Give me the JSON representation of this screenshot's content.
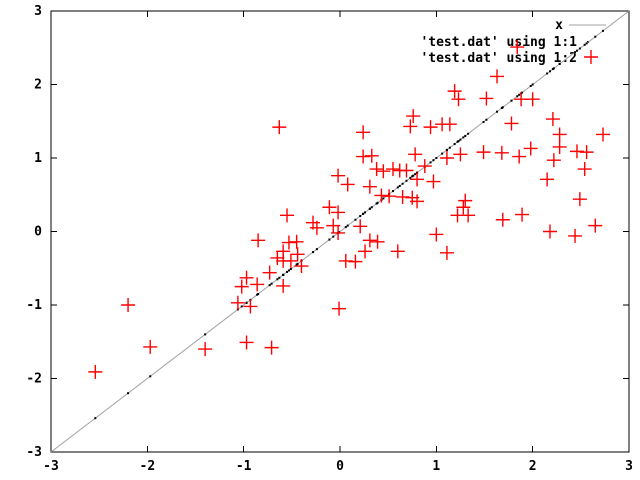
{
  "window": {
    "background": "#ffffff"
  },
  "chart_data": {
    "type": "scatter",
    "title": "",
    "xlabel": "",
    "ylabel": "",
    "xlim": [
      -3,
      3
    ],
    "ylim": [
      -3,
      3
    ],
    "xticks": [
      -3,
      -2,
      -1,
      0,
      1,
      2,
      3
    ],
    "yticks": [
      -3,
      -2,
      -1,
      0,
      1,
      2,
      3
    ],
    "grid": false,
    "legend_position": "top-right-inside",
    "colors": {
      "border": "#000000",
      "tick_text": "#000000",
      "function_line": "#a0a0a0",
      "dots_series": "#000000",
      "points_series": "#ff0000"
    },
    "legend": {
      "entries": [
        {
          "label": "x",
          "sample": "line",
          "color": "#a0a0a0"
        },
        {
          "label": "'test.dat' using 1:1",
          "sample": "dot",
          "color": "#000000"
        },
        {
          "label": "'test.dat' using 1:2",
          "sample": "plus",
          "color": "#ff0000"
        }
      ]
    },
    "series": [
      {
        "name": "x",
        "style": "line",
        "color": "#a0a0a0",
        "function": "y = x",
        "x_range": [
          -3,
          3
        ]
      },
      {
        "name": "'test.dat' using 1:1",
        "style": "dots",
        "color": "#000000",
        "note": "points (col1, col1) lying on the diagonal",
        "x_values": [
          -0.63,
          1.84,
          1.63,
          1.19,
          1.23,
          1.52,
          0.24,
          0.76,
          0.73,
          0.94,
          1.06,
          1.14,
          1.78,
          1.88,
          2.0,
          2.21,
          2.28,
          2.28,
          2.73,
          0.24,
          0.33,
          0.78,
          1.11,
          1.25,
          1.49,
          1.68,
          1.86,
          1.98,
          2.22,
          2.46,
          2.56,
          2.54,
          0.38,
          0.45,
          0.55,
          0.62,
          0.69,
          0.88,
          0.8,
          0.97,
          0.08,
          -0.02,
          0.31,
          0.43,
          0.51,
          0.65,
          0.75,
          0.8,
          1.3,
          1.28,
          1.22,
          1.33,
          1.69,
          1.89,
          2.15,
          2.49,
          2.18,
          2.44,
          2.65,
          -0.02,
          0.21,
          0.06,
          0.16,
          0.26,
          0.31,
          0.39,
          0.6,
          1.0,
          1.11,
          -0.02,
          -0.55,
          -0.11,
          -0.28,
          -0.24,
          -0.07,
          -0.85,
          -0.53,
          -0.45,
          -0.59,
          -0.44,
          -0.65,
          -0.59,
          -0.51,
          -0.4,
          -0.97,
          -0.86,
          -1.02,
          -0.73,
          -0.59,
          -2.2,
          -1.06,
          -0.93,
          -0.01,
          -1.97,
          -1.4,
          -0.97,
          -0.71,
          -2.54
        ]
      },
      {
        "name": "'test.dat' using 1:2",
        "style": "points",
        "marker": "plus",
        "color": "#ff0000",
        "points": [
          [
            -0.63,
            1.42
          ],
          [
            1.84,
            2.51
          ],
          [
            1.63,
            2.11
          ],
          [
            1.19,
            1.91
          ],
          [
            1.23,
            1.8
          ],
          [
            1.52,
            1.81
          ],
          [
            0.24,
            1.35
          ],
          [
            0.76,
            1.57
          ],
          [
            0.73,
            1.43
          ],
          [
            0.94,
            1.42
          ],
          [
            1.06,
            1.46
          ],
          [
            1.14,
            1.46
          ],
          [
            1.78,
            1.47
          ],
          [
            1.88,
            1.8
          ],
          [
            2.0,
            1.8
          ],
          [
            2.21,
            1.53
          ],
          [
            2.28,
            1.32
          ],
          [
            2.28,
            1.15
          ],
          [
            2.73,
            1.32
          ],
          [
            0.24,
            1.02
          ],
          [
            0.33,
            1.03
          ],
          [
            0.78,
            1.05
          ],
          [
            1.11,
            1.0
          ],
          [
            1.25,
            1.05
          ],
          [
            1.49,
            1.08
          ],
          [
            1.68,
            1.07
          ],
          [
            1.86,
            1.02
          ],
          [
            1.98,
            1.13
          ],
          [
            2.22,
            0.97
          ],
          [
            2.46,
            1.09
          ],
          [
            2.56,
            1.08
          ],
          [
            2.54,
            0.85
          ],
          [
            0.38,
            0.85
          ],
          [
            0.45,
            0.82
          ],
          [
            0.55,
            0.85
          ],
          [
            0.62,
            0.83
          ],
          [
            0.69,
            0.83
          ],
          [
            0.88,
            0.89
          ],
          [
            0.8,
            0.71
          ],
          [
            0.97,
            0.68
          ],
          [
            0.08,
            0.64
          ],
          [
            -0.02,
            0.76
          ],
          [
            0.31,
            0.61
          ],
          [
            0.43,
            0.49
          ],
          [
            0.51,
            0.48
          ],
          [
            0.65,
            0.47
          ],
          [
            0.75,
            0.46
          ],
          [
            0.8,
            0.41
          ],
          [
            1.3,
            0.42
          ],
          [
            1.28,
            0.33
          ],
          [
            1.22,
            0.22
          ],
          [
            1.33,
            0.22
          ],
          [
            1.69,
            0.16
          ],
          [
            1.89,
            0.23
          ],
          [
            2.15,
            0.71
          ],
          [
            2.49,
            0.44
          ],
          [
            2.18,
            0.0
          ],
          [
            2.44,
            -0.06
          ],
          [
            2.65,
            0.08
          ],
          [
            -0.02,
            0.26
          ],
          [
            0.21,
            0.07
          ],
          [
            0.06,
            -0.4
          ],
          [
            0.16,
            -0.41
          ],
          [
            0.26,
            -0.27
          ],
          [
            0.31,
            -0.12
          ],
          [
            0.39,
            -0.14
          ],
          [
            0.6,
            -0.27
          ],
          [
            1.0,
            -0.04
          ],
          [
            1.11,
            -0.29
          ],
          [
            -0.02,
            -0.02
          ],
          [
            -0.55,
            0.22
          ],
          [
            -0.11,
            0.33
          ],
          [
            -0.28,
            0.12
          ],
          [
            -0.24,
            0.05
          ],
          [
            -0.07,
            0.08
          ],
          [
            -0.85,
            -0.12
          ],
          [
            -0.53,
            -0.15
          ],
          [
            -0.45,
            -0.14
          ],
          [
            -0.59,
            -0.27
          ],
          [
            -0.44,
            -0.31
          ],
          [
            -0.65,
            -0.36
          ],
          [
            -0.59,
            -0.4
          ],
          [
            -0.51,
            -0.4
          ],
          [
            -0.4,
            -0.47
          ],
          [
            -0.97,
            -0.63
          ],
          [
            -0.86,
            -0.72
          ],
          [
            -1.02,
            -0.75
          ],
          [
            -0.73,
            -0.56
          ],
          [
            -0.59,
            -0.74
          ],
          [
            -2.2,
            -1.0
          ],
          [
            -1.06,
            -0.97
          ],
          [
            -0.93,
            -1.02
          ],
          [
            -0.01,
            -1.05
          ],
          [
            -1.97,
            -1.57
          ],
          [
            -1.4,
            -1.6
          ],
          [
            -0.97,
            -1.51
          ],
          [
            -0.71,
            -1.58
          ],
          [
            -2.54,
            -1.91
          ]
        ]
      }
    ]
  }
}
